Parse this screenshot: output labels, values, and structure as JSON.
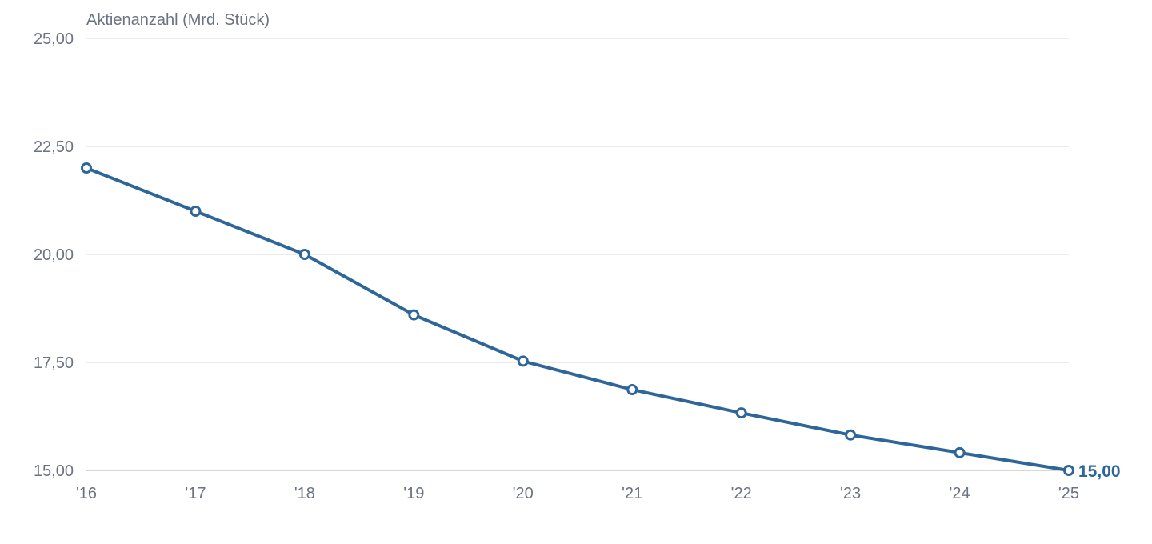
{
  "chart_data": {
    "type": "line",
    "ylabel": "Aktienanzahl (Mrd. Stück)",
    "categories": [
      "'16",
      "'17",
      "'18",
      "'19",
      "'20",
      "'21",
      "'22",
      "'23",
      "'24",
      "'25"
    ],
    "series": [
      {
        "values": [
          22.0,
          21.0,
          20.0,
          18.6,
          17.53,
          16.87,
          16.33,
          15.82,
          15.41,
          15.0
        ],
        "color": "#2f6699"
      }
    ],
    "ylim": [
      15,
      25
    ],
    "yticks": [
      15,
      17.5,
      20,
      22.5,
      25
    ],
    "ytick_labels": [
      "15,00",
      "17,50",
      "20,00",
      "22,50",
      "25,00"
    ],
    "last_value_label": "15,00",
    "grid": true
  }
}
